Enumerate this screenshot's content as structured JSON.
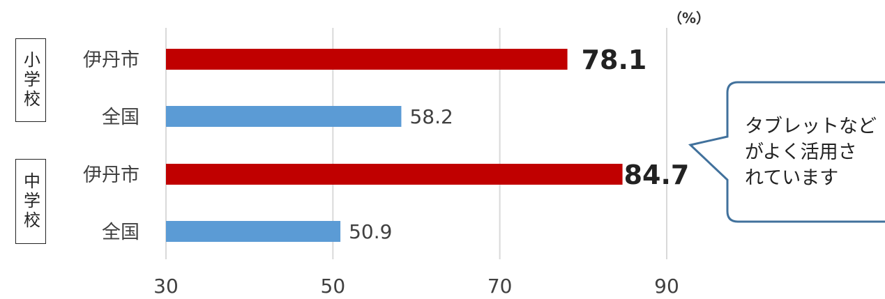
{
  "unit_label": "（%）",
  "groups": [
    {
      "label": "小学校"
    },
    {
      "label": "中学校"
    }
  ],
  "callout": {
    "lines": [
      "タブレットなど",
      "がよく活用さ",
      "れています"
    ]
  },
  "colors": {
    "itami": "#c00000",
    "national": "#5b9bd5",
    "callout_border": "#41719c",
    "gridline": "#d9d9d9"
  },
  "chart_data": {
    "type": "bar",
    "orientation": "horizontal",
    "categories": [
      "伊丹市",
      "全国",
      "伊丹市",
      "全国"
    ],
    "values": [
      78.1,
      58.2,
      84.7,
      50.9
    ],
    "value_labels": [
      "78.1",
      "58.2",
      "84.7",
      "50.9"
    ],
    "emphasized": [
      true,
      false,
      true,
      false
    ],
    "xlim": [
      30,
      90
    ],
    "xticks": [
      "30",
      "50",
      "70",
      "90"
    ],
    "grid": true
  }
}
